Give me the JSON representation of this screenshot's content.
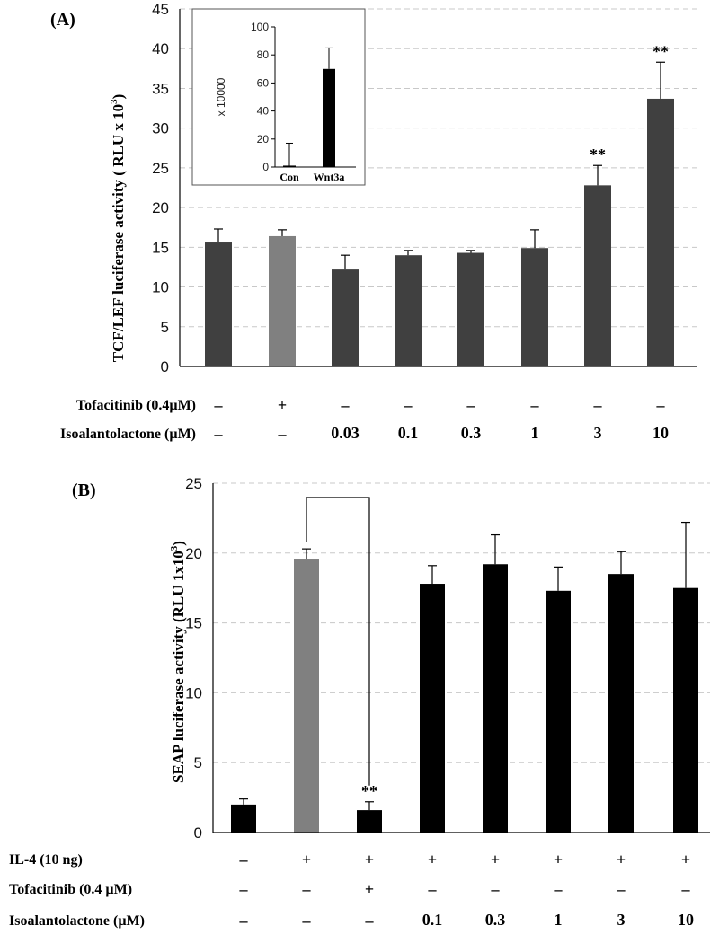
{
  "chart_data": [
    {
      "type": "bar",
      "panel_label": "(A)",
      "ylabel": "TCF/LEF luciferase activity ( RLU x 10",
      "ylabel_sup": "3",
      "ylabel_end": ")",
      "ylim": [
        0,
        45
      ],
      "yticks": [
        "0",
        "5",
        "10",
        "15",
        "20",
        "25",
        "30",
        "35",
        "40",
        "45"
      ],
      "grid": true,
      "bars": [
        {
          "value": 15.6,
          "error": 1.7,
          "color": "#404040",
          "sig": ""
        },
        {
          "value": 16.4,
          "error": 0.8,
          "color": "#808080",
          "sig": ""
        },
        {
          "value": 12.2,
          "error": 1.8,
          "color": "#404040",
          "sig": ""
        },
        {
          "value": 14.0,
          "error": 0.6,
          "color": "#404040",
          "sig": ""
        },
        {
          "value": 14.3,
          "error": 0.3,
          "color": "#404040",
          "sig": ""
        },
        {
          "value": 14.9,
          "error": 2.3,
          "color": "#404040",
          "sig": ""
        },
        {
          "value": 22.8,
          "error": 2.5,
          "color": "#404040",
          "sig": "**"
        },
        {
          "value": 33.7,
          "error": 4.6,
          "color": "#404040",
          "sig": "**"
        }
      ],
      "factor_rows": [
        {
          "label": "Tofacitinib (0.4µM)",
          "values": [
            "-",
            "+",
            "-",
            "-",
            "-",
            "-",
            "-",
            "-"
          ]
        },
        {
          "label": "Isoalantolactone (µM)",
          "values": [
            "-",
            "-",
            "0.03",
            "0.1",
            "0.3",
            "1",
            "3",
            "10"
          ]
        }
      ],
      "inset": {
        "type": "bar",
        "ylabel": "x 10000",
        "ylim": [
          0,
          100
        ],
        "yticks": [
          "0",
          "20",
          "40",
          "60",
          "80",
          "100"
        ],
        "categories": [
          "Con",
          "Wnt3a"
        ],
        "values": [
          1,
          70
        ],
        "errors": [
          16,
          15
        ]
      }
    },
    {
      "type": "bar",
      "panel_label": "(B)",
      "ylabel": "SEAP luciferase activity (RLU 1x10",
      "ylabel_sup": "3",
      "ylabel_end": ")",
      "ylim": [
        0,
        25
      ],
      "yticks": [
        "0",
        "5",
        "10",
        "15",
        "20",
        "25"
      ],
      "grid": true,
      "bars": [
        {
          "value": 2.0,
          "error": 0.4,
          "color": "#000000",
          "sig": ""
        },
        {
          "value": 19.6,
          "error": 0.7,
          "color": "#808080",
          "sig": ""
        },
        {
          "value": 1.6,
          "error": 0.6,
          "color": "#000000",
          "sig": "**"
        },
        {
          "value": 17.8,
          "error": 1.3,
          "color": "#000000",
          "sig": ""
        },
        {
          "value": 19.2,
          "error": 2.1,
          "color": "#000000",
          "sig": ""
        },
        {
          "value": 17.3,
          "error": 1.7,
          "color": "#000000",
          "sig": ""
        },
        {
          "value": 18.5,
          "error": 1.6,
          "color": "#000000",
          "sig": ""
        },
        {
          "value": 17.5,
          "error": 4.7,
          "color": "#000000",
          "sig": ""
        }
      ],
      "bracket": {
        "from_bar": 1,
        "to_bar": 2
      },
      "factor_rows": [
        {
          "label": "IL-4 (10 ng)",
          "values": [
            "-",
            "+",
            "+",
            "+",
            "+",
            "+",
            "+",
            "+"
          ]
        },
        {
          "label": "Tofacitinib  (0.4 µM)",
          "values": [
            "-",
            "-",
            "+",
            "-",
            "-",
            "-",
            "-",
            "-"
          ]
        },
        {
          "label": "Isoalantolactone (µM)",
          "values": [
            "-",
            "-",
            "-",
            "0.1",
            "0.3",
            "1",
            "3",
            "10"
          ]
        }
      ]
    }
  ]
}
